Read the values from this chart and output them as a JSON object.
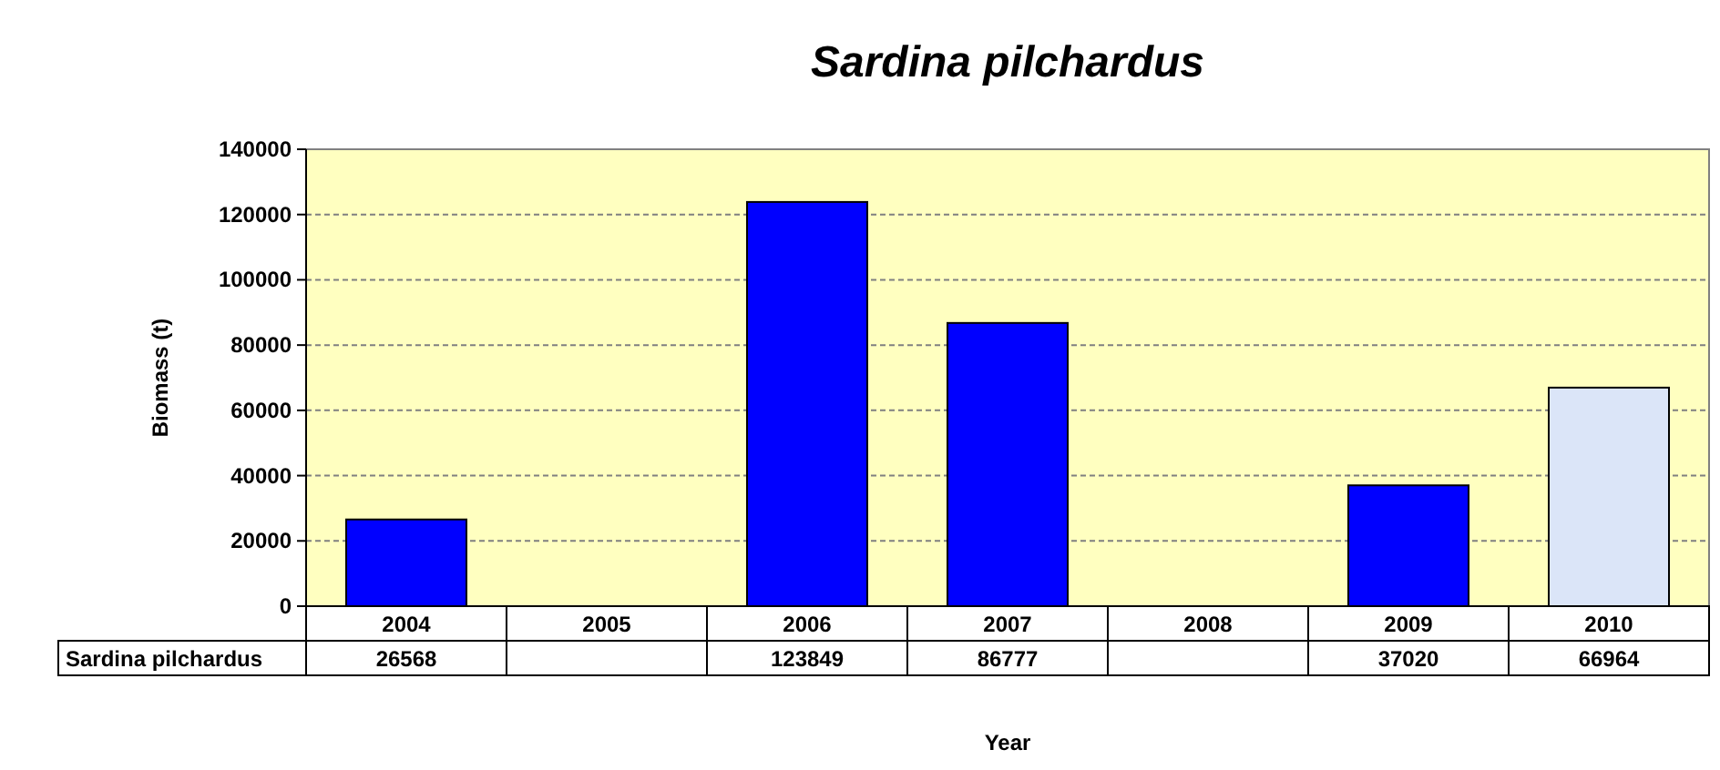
{
  "chart_data": {
    "type": "bar",
    "title": "Sardina pilchardus",
    "xlabel": "Year",
    "ylabel": "Biomass (t)",
    "categories": [
      "2004",
      "2005",
      "2006",
      "2007",
      "2008",
      "2009",
      "2010"
    ],
    "series": [
      {
        "name": "Sardina pilchardus",
        "colors": [
          "#0000ff",
          null,
          "#0000ff",
          "#0000ff",
          null,
          "#0000ff",
          "#dbe5f8"
        ],
        "values": [
          26568,
          null,
          123849,
          86777,
          null,
          37020,
          66964
        ]
      }
    ],
    "ylim": [
      0,
      140000
    ],
    "yticks": [
      0,
      20000,
      40000,
      60000,
      80000,
      100000,
      120000,
      140000
    ],
    "grid": "y",
    "data_labels": true
  }
}
